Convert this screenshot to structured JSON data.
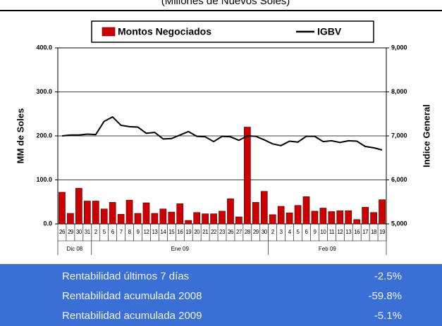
{
  "chart_data": {
    "type": "bar",
    "title": "(Millones de Nuevos Soles)",
    "y_label": "MM de Soles",
    "y2_label": "Indice General",
    "categories": [
      "26",
      "29",
      "30",
      "31",
      "2",
      "5",
      "6",
      "7",
      "8",
      "9",
      "12",
      "13",
      "14",
      "15",
      "16",
      "19",
      "20",
      "21",
      "22",
      "23",
      "26",
      "27",
      "28",
      "29",
      "30",
      "2",
      "3",
      "4",
      "5",
      "6",
      "9",
      "10",
      "11",
      "12",
      "13",
      "16",
      "17",
      "18",
      "19"
    ],
    "months": [
      "Dic 08",
      "Ene 09",
      "Feb 09"
    ],
    "series": [
      {
        "name": "Montos Negociados",
        "type": "bar",
        "color": "#cc0000",
        "values": [
          72,
          24,
          81,
          52,
          52,
          34,
          49,
          22,
          54,
          24,
          48,
          24,
          34,
          27,
          46,
          8,
          26,
          23,
          23,
          29,
          57,
          16,
          220,
          49,
          74,
          21,
          40,
          25,
          42,
          62,
          29,
          36,
          28,
          30,
          30,
          10,
          38,
          26,
          55
        ]
      },
      {
        "name": "IGBV",
        "type": "line",
        "color": "#000000",
        "axis": "y2",
        "values": [
          7000,
          7020,
          7020,
          7040,
          7030,
          7330,
          7430,
          7240,
          7210,
          7200,
          7060,
          7080,
          6930,
          6940,
          7020,
          7100,
          6990,
          6980,
          6870,
          6990,
          6980,
          6900,
          7000,
          6990,
          6910,
          6820,
          6780,
          6880,
          6860,
          6990,
          6990,
          6870,
          6890,
          6850,
          6890,
          6880,
          6760,
          6730,
          6680
        ]
      }
    ],
    "ylim": [
      0,
      400
    ],
    "yticks": [
      {
        "value": 0,
        "label": "0.0"
      },
      {
        "value": 100,
        "label": "100.0"
      },
      {
        "value": 200,
        "label": "200.0"
      },
      {
        "value": 300,
        "label": "300.0"
      },
      {
        "value": 400,
        "label": "400.0"
      }
    ],
    "y2lim": [
      5000,
      9000
    ],
    "y2ticks": [
      {
        "value": 5000,
        "label": "5,000"
      },
      {
        "value": 6000,
        "label": "6,000"
      },
      {
        "value": 7000,
        "label": "7,000"
      },
      {
        "value": 8000,
        "label": "8,000"
      },
      {
        "value": 9000,
        "label": "9,000"
      }
    ],
    "grid": true
  },
  "table": {
    "rows": [
      [
        "Rentabilidad últimos 7 días",
        "-2.5%"
      ],
      [
        "Rentabilidad acumulada 2008",
        "-59.8%"
      ],
      [
        "Rentabilidad acumulada 2009",
        "-5.1%"
      ]
    ]
  }
}
